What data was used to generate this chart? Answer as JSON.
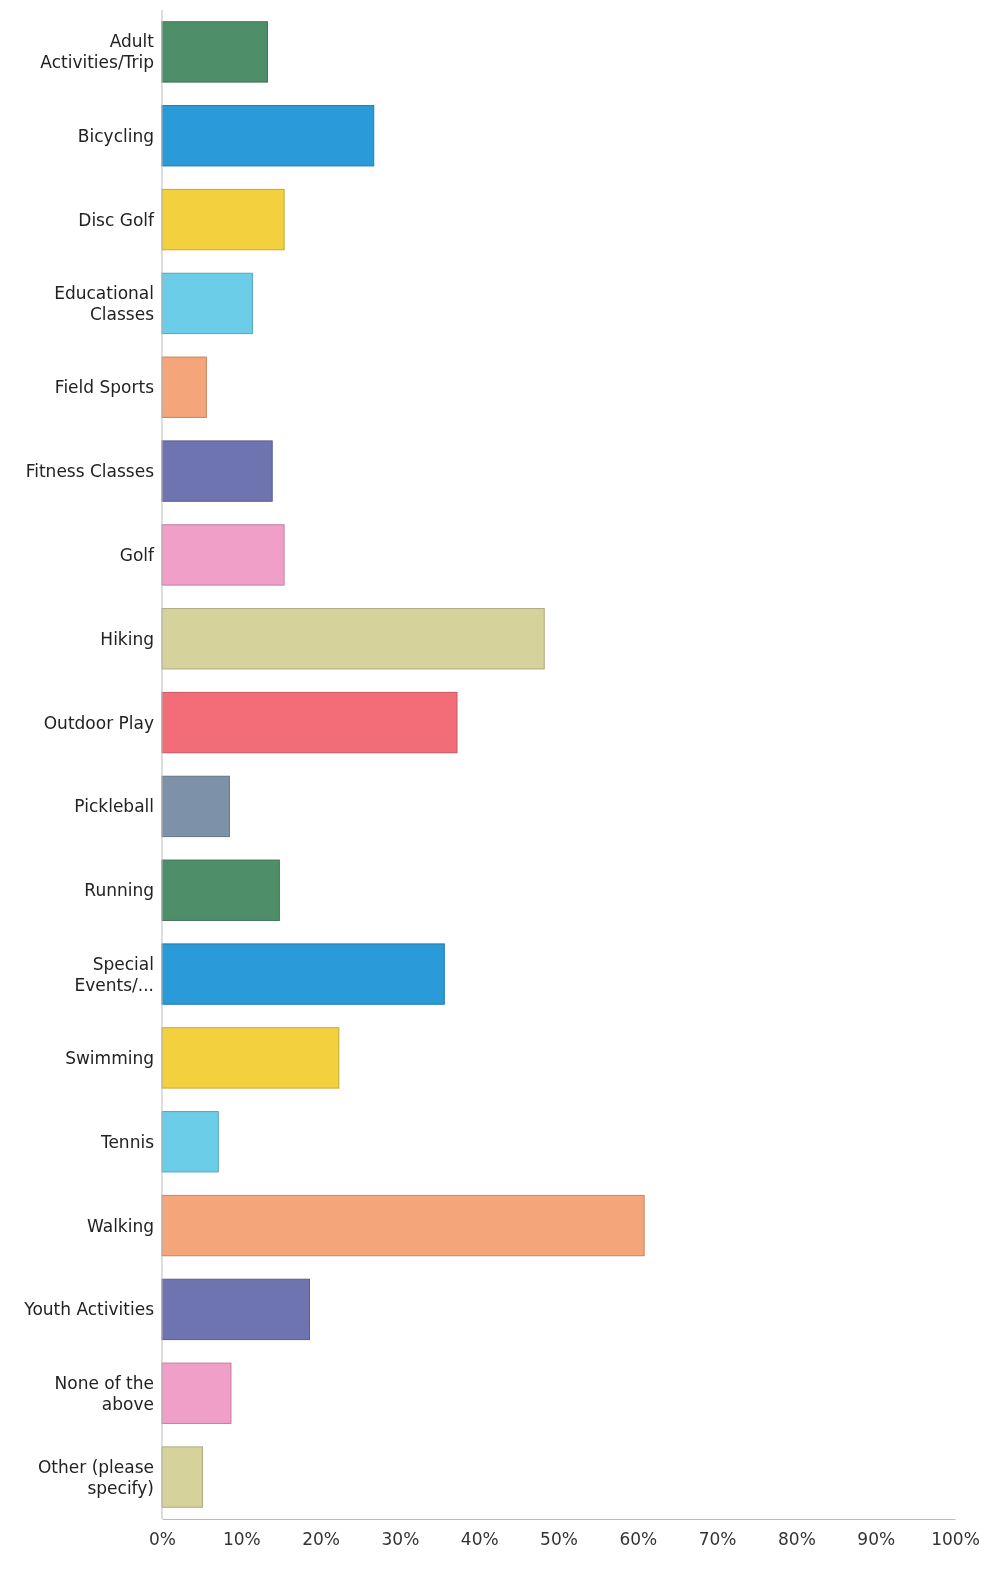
{
  "chart_data": {
    "type": "bar",
    "orientation": "horizontal",
    "categories": [
      "Adult Activities/Trip",
      "Bicycling",
      "Disc Golf",
      "Educational Classes",
      "Field Sports",
      "Fitness Classes",
      "Golf",
      "Hiking",
      "Outdoor Play",
      "Pickleball",
      "Running",
      "Special Events/...",
      "Swimming",
      "Tennis",
      "Walking",
      "Youth Activities",
      "None of the above",
      "Other (please specify)"
    ],
    "values": [
      13.3,
      26.7,
      15.4,
      11.4,
      5.6,
      13.9,
      15.4,
      48.2,
      37.2,
      8.5,
      14.8,
      35.6,
      22.3,
      7.1,
      60.8,
      18.6,
      8.7,
      5.1
    ],
    "colors": [
      "#4e8f69",
      "#2a9ad8",
      "#f3d03e",
      "#6ccde8",
      "#f4a57a",
      "#6e74b0",
      "#f09fc8",
      "#d6d29c",
      "#f36d78",
      "#7d92a8",
      "#4e8f69",
      "#2a9ad8",
      "#f3d03e",
      "#6ccde8",
      "#f4a57a",
      "#6e74b0",
      "#f09fc8",
      "#d6d29c"
    ],
    "xlim": [
      0,
      100
    ],
    "xticks": [
      {
        "value": 0,
        "label": "0%"
      },
      {
        "value": 10,
        "label": "10%"
      },
      {
        "value": 20,
        "label": "20%"
      },
      {
        "value": 30,
        "label": "30%"
      },
      {
        "value": 40,
        "label": "40%"
      },
      {
        "value": 50,
        "label": "50%"
      },
      {
        "value": 60,
        "label": "60%"
      },
      {
        "value": 70,
        "label": "70%"
      },
      {
        "value": 80,
        "label": "80%"
      },
      {
        "value": 90,
        "label": "90%"
      },
      {
        "value": 100,
        "label": "100%"
      }
    ],
    "grid": false
  }
}
